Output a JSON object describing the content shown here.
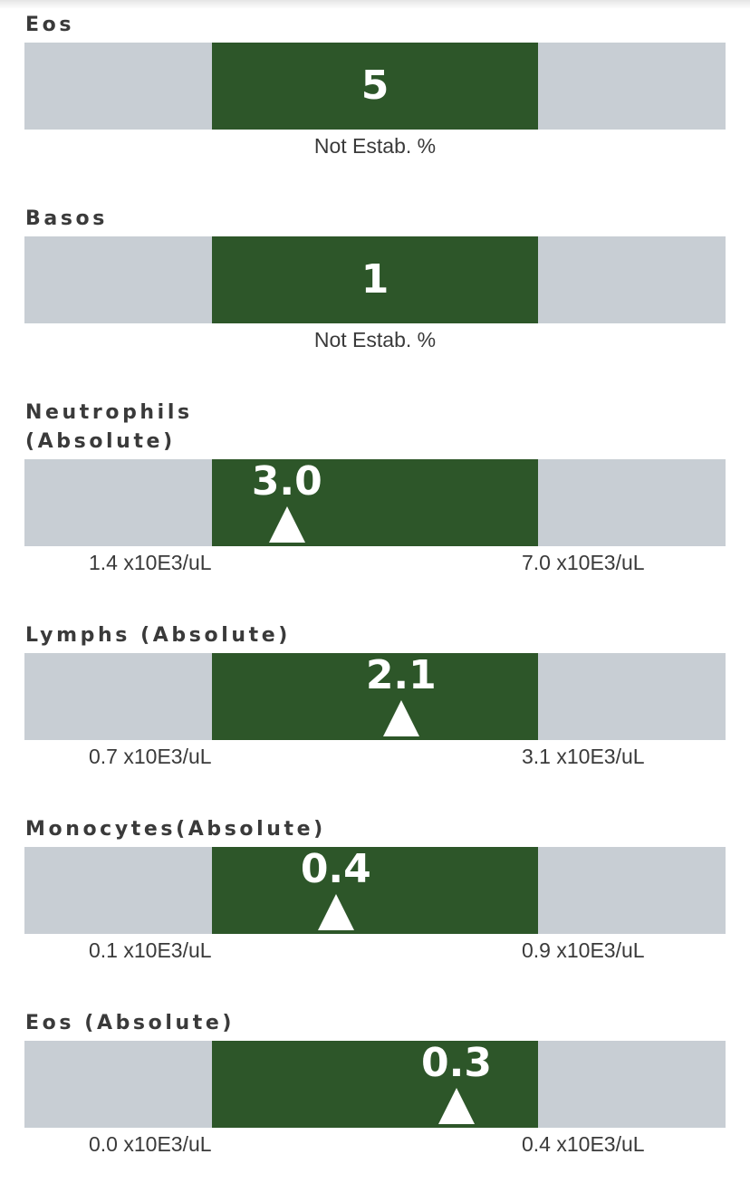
{
  "panels": [
    {
      "label_lines": [
        "Eos"
      ],
      "value": "5",
      "marker_fraction": null,
      "note": "Not Estab. %"
    },
    {
      "label_lines": [
        "Basos"
      ],
      "value": "1",
      "marker_fraction": null,
      "note": "Not Estab. %"
    },
    {
      "label_lines": [
        "Neutrophils",
        "(Absolute)"
      ],
      "value": "3.0",
      "marker_fraction": 0.23,
      "low": "1.4 x10E3/uL",
      "high": "7.0 x10E3/uL"
    },
    {
      "label_lines": [
        "Lymphs (Absolute)"
      ],
      "value": "2.1",
      "marker_fraction": 0.58,
      "low": "0.7 x10E3/uL",
      "high": "3.1 x10E3/uL"
    },
    {
      "label_lines": [
        "Monocytes(Absolute)"
      ],
      "value": "0.4",
      "marker_fraction": 0.38,
      "low": "0.1 x10E3/uL",
      "high": "0.9 x10E3/uL"
    },
    {
      "label_lines": [
        "Eos (Absolute)"
      ],
      "value": "0.3",
      "marker_fraction": 0.75,
      "low": "0.0 x10E3/uL",
      "high": "0.4 x10E3/uL"
    }
  ],
  "colors": {
    "range_fill": "#2d5629",
    "track_fill": "#c8ced4",
    "label_text": "#3a3a3a",
    "value_text": "#ffffff"
  }
}
